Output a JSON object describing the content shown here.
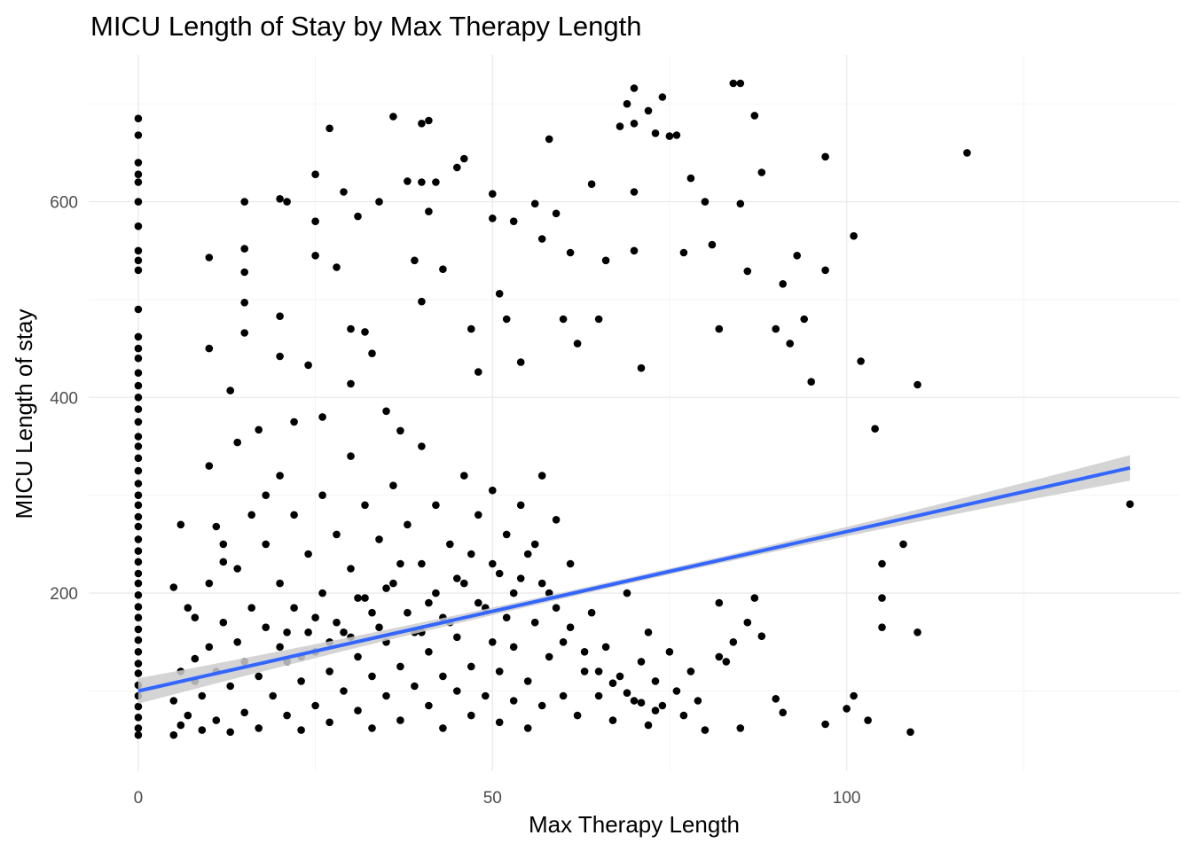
{
  "chart_data": {
    "type": "scatter",
    "title": "MICU Length of Stay by Max Therapy Length",
    "xlabel": "Max Therapy Length",
    "ylabel": "MICU Length of stay",
    "xlim": [
      -7,
      147
    ],
    "ylim": [
      18,
      750
    ],
    "x_ticks": [
      "0",
      "50",
      "100"
    ],
    "y_ticks": [
      "200",
      "400",
      "600"
    ],
    "grid": true,
    "theme": "minimal",
    "point_color": "#000000",
    "trend_line": {
      "method": "linear",
      "color": "#3366FF",
      "band_color": "#cccccc",
      "points": [
        [
          0,
          100
        ],
        [
          140,
          328
        ]
      ]
    },
    "series": [
      {
        "values": [
          [
            0,
            685
          ],
          [
            0,
            668
          ],
          [
            0,
            640
          ],
          [
            0,
            628
          ],
          [
            0,
            620
          ],
          [
            0,
            600
          ],
          [
            0,
            575
          ],
          [
            0,
            550
          ],
          [
            0,
            540
          ],
          [
            0,
            530
          ],
          [
            0,
            490
          ],
          [
            0,
            462
          ],
          [
            0,
            450
          ],
          [
            0,
            440
          ],
          [
            0,
            425
          ],
          [
            0,
            412
          ],
          [
            0,
            400
          ],
          [
            0,
            388
          ],
          [
            0,
            375
          ],
          [
            0,
            360
          ],
          [
            0,
            350
          ],
          [
            0,
            338
          ],
          [
            0,
            325
          ],
          [
            0,
            312
          ],
          [
            0,
            300
          ],
          [
            0,
            290
          ],
          [
            0,
            278
          ],
          [
            0,
            268
          ],
          [
            0,
            255
          ],
          [
            0,
            243
          ],
          [
            0,
            232
          ],
          [
            0,
            220
          ],
          [
            0,
            210
          ],
          [
            0,
            198
          ],
          [
            0,
            186
          ],
          [
            0,
            175
          ],
          [
            0,
            163
          ],
          [
            0,
            152
          ],
          [
            0,
            140
          ],
          [
            0,
            128
          ],
          [
            0,
            118
          ],
          [
            0,
            106
          ],
          [
            0,
            95
          ],
          [
            0,
            84
          ],
          [
            0,
            73
          ],
          [
            0,
            62
          ],
          [
            0,
            55
          ],
          [
            5,
            206
          ],
          [
            6,
            270
          ],
          [
            7,
            185
          ],
          [
            8,
            133
          ],
          [
            10,
            330
          ],
          [
            10,
            450
          ],
          [
            10,
            543
          ],
          [
            11,
            268
          ],
          [
            12,
            232
          ],
          [
            13,
            407
          ],
          [
            14,
            354
          ],
          [
            15,
            600
          ],
          [
            15,
            552
          ],
          [
            15,
            528
          ],
          [
            15,
            497
          ],
          [
            15,
            466
          ],
          [
            17,
            367
          ],
          [
            18,
            300
          ],
          [
            20,
            603
          ],
          [
            20,
            483
          ],
          [
            20,
            442
          ],
          [
            21,
            600
          ],
          [
            22,
            375
          ],
          [
            24,
            433
          ],
          [
            25,
            628
          ],
          [
            25,
            580
          ],
          [
            25,
            545
          ],
          [
            26,
            380
          ],
          [
            27,
            675
          ],
          [
            28,
            533
          ],
          [
            29,
            610
          ],
          [
            30,
            470
          ],
          [
            30,
            414
          ],
          [
            31,
            585
          ],
          [
            32,
            467
          ],
          [
            33,
            445
          ],
          [
            34,
            600
          ],
          [
            35,
            386
          ],
          [
            36,
            687
          ],
          [
            37,
            366
          ],
          [
            38,
            621
          ],
          [
            39,
            540
          ],
          [
            40,
            680
          ],
          [
            40,
            620
          ],
          [
            40,
            498
          ],
          [
            41,
            683
          ],
          [
            41,
            590
          ],
          [
            42,
            620
          ],
          [
            43,
            531
          ],
          [
            45,
            635
          ],
          [
            46,
            644
          ],
          [
            47,
            470
          ],
          [
            48,
            426
          ],
          [
            50,
            608
          ],
          [
            50,
            583
          ],
          [
            51,
            506
          ],
          [
            52,
            480
          ],
          [
            53,
            580
          ],
          [
            54,
            436
          ],
          [
            56,
            598
          ],
          [
            57,
            562
          ],
          [
            58,
            664
          ],
          [
            59,
            588
          ],
          [
            60,
            480
          ],
          [
            61,
            548
          ],
          [
            62,
            455
          ],
          [
            64,
            618
          ],
          [
            65,
            480
          ],
          [
            66,
            540
          ],
          [
            68,
            677
          ],
          [
            69,
            700
          ],
          [
            70,
            716
          ],
          [
            70,
            680
          ],
          [
            70,
            610
          ],
          [
            70,
            550
          ],
          [
            71,
            430
          ],
          [
            72,
            693
          ],
          [
            73,
            670
          ],
          [
            74,
            707
          ],
          [
            75,
            667
          ],
          [
            76,
            668
          ],
          [
            77,
            548
          ],
          [
            78,
            624
          ],
          [
            80,
            600
          ],
          [
            81,
            556
          ],
          [
            82,
            470
          ],
          [
            84,
            721
          ],
          [
            85,
            721
          ],
          [
            85,
            598
          ],
          [
            86,
            529
          ],
          [
            87,
            688
          ],
          [
            88,
            630
          ],
          [
            90,
            470
          ],
          [
            91,
            516
          ],
          [
            92,
            455
          ],
          [
            93,
            545
          ],
          [
            94,
            480
          ],
          [
            95,
            416
          ],
          [
            97,
            646
          ],
          [
            97,
            530
          ],
          [
            101,
            565
          ],
          [
            102,
            437
          ],
          [
            104,
            368
          ],
          [
            105,
            230
          ],
          [
            105,
            195
          ],
          [
            105,
            165
          ],
          [
            108,
            250
          ],
          [
            110,
            413
          ],
          [
            110,
            160
          ],
          [
            117,
            650
          ],
          [
            140,
            291
          ],
          [
            109,
            58
          ],
          [
            103,
            70
          ],
          [
            101,
            95
          ],
          [
            97,
            66
          ],
          [
            100,
            82
          ],
          [
            90,
            92
          ],
          [
            91,
            78
          ],
          [
            88,
            156
          ],
          [
            87,
            195
          ],
          [
            86,
            170
          ],
          [
            85,
            62
          ],
          [
            84,
            150
          ],
          [
            83,
            130
          ],
          [
            82,
            190
          ],
          [
            82,
            135
          ],
          [
            80,
            60
          ],
          [
            79,
            90
          ],
          [
            78,
            120
          ],
          [
            77,
            75
          ],
          [
            76,
            100
          ],
          [
            75,
            140
          ],
          [
            74,
            85
          ],
          [
            73,
            110
          ],
          [
            72,
            160
          ],
          [
            72,
            65
          ],
          [
            71,
            130
          ],
          [
            70,
            90
          ],
          [
            69,
            200
          ],
          [
            68,
            115
          ],
          [
            67,
            70
          ],
          [
            66,
            145
          ],
          [
            65,
            95
          ],
          [
            64,
            180
          ],
          [
            63,
            120
          ],
          [
            62,
            75
          ],
          [
            61,
            230
          ],
          [
            60,
            150
          ],
          [
            60,
            95
          ],
          [
            59,
            275
          ],
          [
            58,
            200
          ],
          [
            58,
            135
          ],
          [
            57,
            320
          ],
          [
            57,
            85
          ],
          [
            56,
            250
          ],
          [
            56,
            170
          ],
          [
            55,
            110
          ],
          [
            55,
            62
          ],
          [
            54,
            290
          ],
          [
            54,
            215
          ],
          [
            53,
            145
          ],
          [
            53,
            90
          ],
          [
            52,
            260
          ],
          [
            52,
            175
          ],
          [
            51,
            120
          ],
          [
            51,
            68
          ],
          [
            50,
            305
          ],
          [
            50,
            230
          ],
          [
            50,
            150
          ],
          [
            49,
            95
          ],
          [
            48,
            280
          ],
          [
            48,
            190
          ],
          [
            47,
            125
          ],
          [
            47,
            75
          ],
          [
            46,
            320
          ],
          [
            46,
            210
          ],
          [
            45,
            155
          ],
          [
            45,
            100
          ],
          [
            44,
            250
          ],
          [
            44,
            170
          ],
          [
            43,
            115
          ],
          [
            43,
            62
          ],
          [
            42,
            290
          ],
          [
            42,
            200
          ],
          [
            41,
            140
          ],
          [
            41,
            85
          ],
          [
            40,
            350
          ],
          [
            40,
            230
          ],
          [
            40,
            160
          ],
          [
            39,
            105
          ],
          [
            38,
            270
          ],
          [
            38,
            180
          ],
          [
            37,
            125
          ],
          [
            37,
            70
          ],
          [
            36,
            310
          ],
          [
            36,
            210
          ],
          [
            35,
            150
          ],
          [
            35,
            95
          ],
          [
            34,
            255
          ],
          [
            34,
            165
          ],
          [
            33,
            115
          ],
          [
            33,
            62
          ],
          [
            32,
            290
          ],
          [
            32,
            195
          ],
          [
            31,
            135
          ],
          [
            31,
            80
          ],
          [
            30,
            340
          ],
          [
            30,
            225
          ],
          [
            30,
            155
          ],
          [
            29,
            100
          ],
          [
            28,
            260
          ],
          [
            28,
            170
          ],
          [
            27,
            120
          ],
          [
            27,
            68
          ],
          [
            26,
            300
          ],
          [
            26,
            200
          ],
          [
            25,
            140
          ],
          [
            25,
            85
          ],
          [
            24,
            240
          ],
          [
            24,
            160
          ],
          [
            23,
            110
          ],
          [
            23,
            60
          ],
          [
            22,
            280
          ],
          [
            22,
            185
          ],
          [
            21,
            130
          ],
          [
            21,
            75
          ],
          [
            20,
            320
          ],
          [
            20,
            210
          ],
          [
            20,
            145
          ],
          [
            19,
            95
          ],
          [
            18,
            250
          ],
          [
            18,
            165
          ],
          [
            17,
            115
          ],
          [
            17,
            62
          ],
          [
            16,
            280
          ],
          [
            16,
            185
          ],
          [
            15,
            130
          ],
          [
            15,
            78
          ],
          [
            14,
            225
          ],
          [
            14,
            150
          ],
          [
            13,
            105
          ],
          [
            13,
            58
          ],
          [
            12,
            250
          ],
          [
            12,
            170
          ],
          [
            11,
            120
          ],
          [
            11,
            70
          ],
          [
            10,
            210
          ],
          [
            10,
            145
          ],
          [
            9,
            95
          ],
          [
            9,
            60
          ],
          [
            8,
            175
          ],
          [
            8,
            110
          ],
          [
            7,
            75
          ],
          [
            6,
            120
          ],
          [
            6,
            65
          ],
          [
            5,
            90
          ],
          [
            5,
            55
          ],
          [
            39,
            160
          ],
          [
            41,
            190
          ],
          [
            43,
            175
          ],
          [
            45,
            215
          ],
          [
            47,
            240
          ],
          [
            49,
            185
          ],
          [
            51,
            220
          ],
          [
            53,
            200
          ],
          [
            55,
            240
          ],
          [
            57,
            210
          ],
          [
            59,
            185
          ],
          [
            61,
            165
          ],
          [
            63,
            140
          ],
          [
            65,
            120
          ],
          [
            67,
            108
          ],
          [
            69,
            98
          ],
          [
            71,
            88
          ],
          [
            73,
            80
          ],
          [
            33,
            180
          ],
          [
            35,
            205
          ],
          [
            37,
            230
          ],
          [
            29,
            160
          ],
          [
            31,
            195
          ],
          [
            27,
            150
          ],
          [
            25,
            175
          ],
          [
            23,
            135
          ],
          [
            21,
            160
          ]
        ]
      }
    ]
  }
}
